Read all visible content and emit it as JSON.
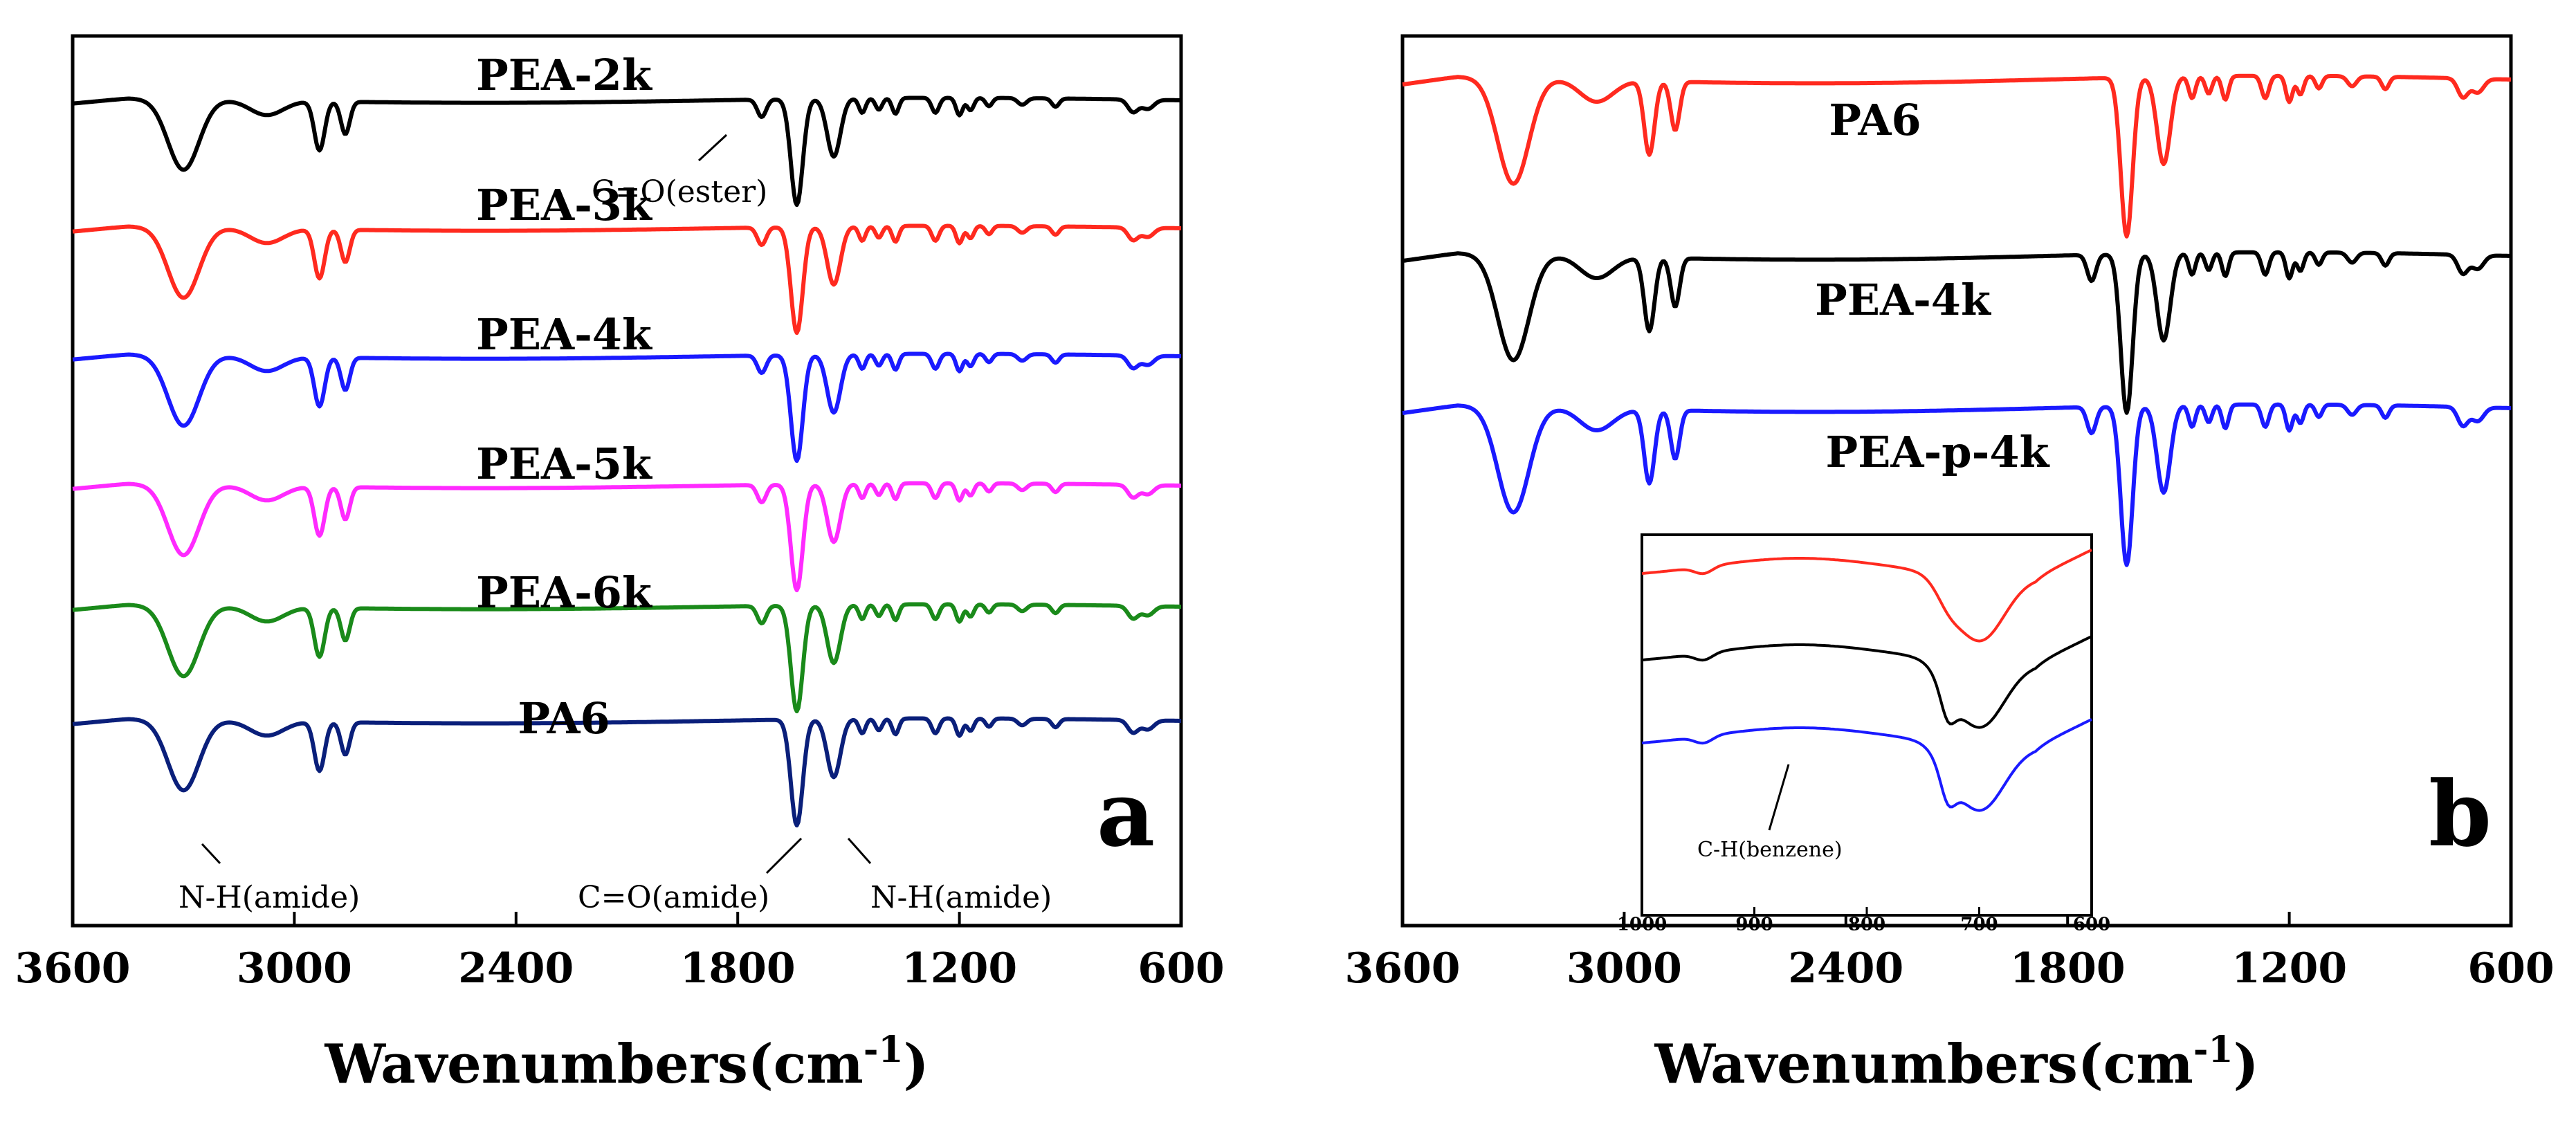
{
  "chart_data": [
    {
      "panel": "a",
      "type": "line",
      "xlabel": "Wavenumbers(cm",
      "xlabel_sup": "-1",
      "ylabel": "",
      "xlim": [
        3600,
        600
      ],
      "x_ticks": [
        "3600",
        "3000",
        "2400",
        "1800",
        "1200",
        "600"
      ],
      "series": [
        {
          "name": "PEA-2k",
          "color": "#000000",
          "ester": true
        },
        {
          "name": "PEA-3k",
          "color": "#ff2a1f",
          "ester": true
        },
        {
          "name": "PEA-4k",
          "color": "#1a1aff",
          "ester": true
        },
        {
          "name": "PEA-5k",
          "color": "#ff2aff",
          "ester": true
        },
        {
          "name": "PEA-6k",
          "color": "#1a8a1a",
          "ester": true
        },
        {
          "name": "PA6",
          "color": "#0a1f7a",
          "ester": false
        }
      ],
      "annotations": [
        "C=O(ester)",
        "N-H(amide)",
        "C=O(amide)",
        "N-H(amide)"
      ]
    },
    {
      "panel": "b",
      "type": "line",
      "xlabel": "Wavenumbers(cm",
      "xlabel_sup": "-1",
      "ylabel": "",
      "xlim": [
        3600,
        600
      ],
      "x_ticks": [
        "3600",
        "3000",
        "2400",
        "1800",
        "1200",
        "600"
      ],
      "series": [
        {
          "name": "PA6",
          "color": "#ff2a1f",
          "ester": false
        },
        {
          "name": "PEA-4k",
          "color": "#000000",
          "ester": true
        },
        {
          "name": "PEA-p-4k",
          "color": "#1a1aff",
          "ester": true
        }
      ],
      "inset": {
        "xlim": [
          1000,
          600
        ],
        "x_ticks": [
          "1000",
          "900",
          "800",
          "700",
          "600"
        ],
        "annotation": "C-H(benzene)"
      }
    }
  ]
}
